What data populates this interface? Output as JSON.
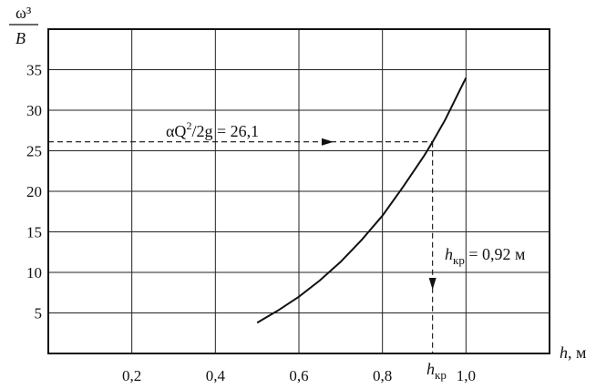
{
  "chart_data": {
    "type": "line",
    "y_axis_label": {
      "top": "ω³",
      "bottom": "B"
    },
    "x_axis_label": {
      "var": "h",
      "unit": ", м"
    },
    "xlim": [
      0,
      1.2
    ],
    "ylim": [
      0,
      40
    ],
    "x_ticks": [
      {
        "value": 0.2,
        "label": "0,2"
      },
      {
        "value": 0.4,
        "label": "0,4"
      },
      {
        "value": 0.6,
        "label": "0,6"
      },
      {
        "value": 0.8,
        "label": "0,8"
      },
      {
        "value": 1.0,
        "label": "1,0"
      }
    ],
    "y_ticks": [
      {
        "value": 5,
        "label": "5"
      },
      {
        "value": 10,
        "label": "10"
      },
      {
        "value": 15,
        "label": "15"
      },
      {
        "value": 20,
        "label": "20"
      },
      {
        "value": 25,
        "label": "25"
      },
      {
        "value": 30,
        "label": "30"
      },
      {
        "value": 35,
        "label": "35"
      }
    ],
    "grid": true,
    "series": [
      {
        "x": [
          0.5,
          0.55,
          0.6,
          0.65,
          0.7,
          0.75,
          0.8,
          0.85,
          0.9,
          0.92,
          0.95,
          1.0
        ],
        "y": [
          3.8,
          5.3,
          7.0,
          9.0,
          11.3,
          14.0,
          17.0,
          20.6,
          24.4,
          26.1,
          28.8,
          34.0
        ]
      }
    ],
    "annotations": {
      "formula": {
        "prefix": "αQ",
        "sup": "2",
        "suffix": "/2g = 26,1",
        "y_value": 26.1
      },
      "result": {
        "var": "h",
        "sub": "кр",
        "suffix": " = 0,92 м",
        "x_value": 0.92
      },
      "x_marker": {
        "var": "h",
        "sub": "кр"
      }
    }
  }
}
